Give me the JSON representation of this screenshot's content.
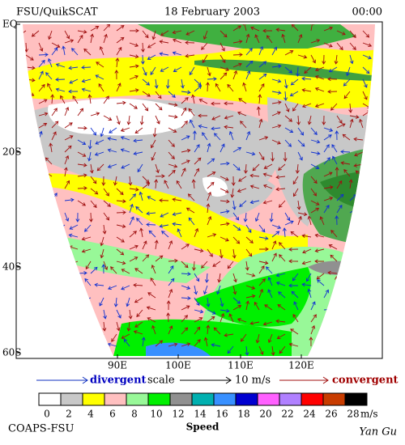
{
  "header": {
    "source": "FSU/QuikSCAT",
    "date": "18 February 2003",
    "time": "00:00"
  },
  "lat_labels": [
    "EQ",
    "20S",
    "40S",
    "60S"
  ],
  "lon_labels": [
    "90E",
    "100E",
    "110E",
    "120E"
  ],
  "legend": {
    "divergent": "divergent",
    "scale": "scale",
    "magnitude": "10 m/s",
    "convergent": "convergent"
  },
  "colorbar": {
    "ticks": [
      0,
      2,
      4,
      6,
      8,
      10,
      12,
      14,
      16,
      18,
      20,
      22,
      24,
      26,
      28
    ],
    "colors": [
      "#ffffff",
      "#c8c8c8",
      "#ffff00",
      "#ffc0c0",
      "#98f898",
      "#00f000",
      "#909090",
      "#00b0b0",
      "#3890ff",
      "#0000d0",
      "#ff60ff",
      "#b080ff",
      "#ff0000",
      "#c83c00",
      "#000000"
    ],
    "unit": "m/s",
    "label": "Speed"
  },
  "footer": {
    "org": "COAPS-FSU",
    "author": "Yan Gu"
  }
}
